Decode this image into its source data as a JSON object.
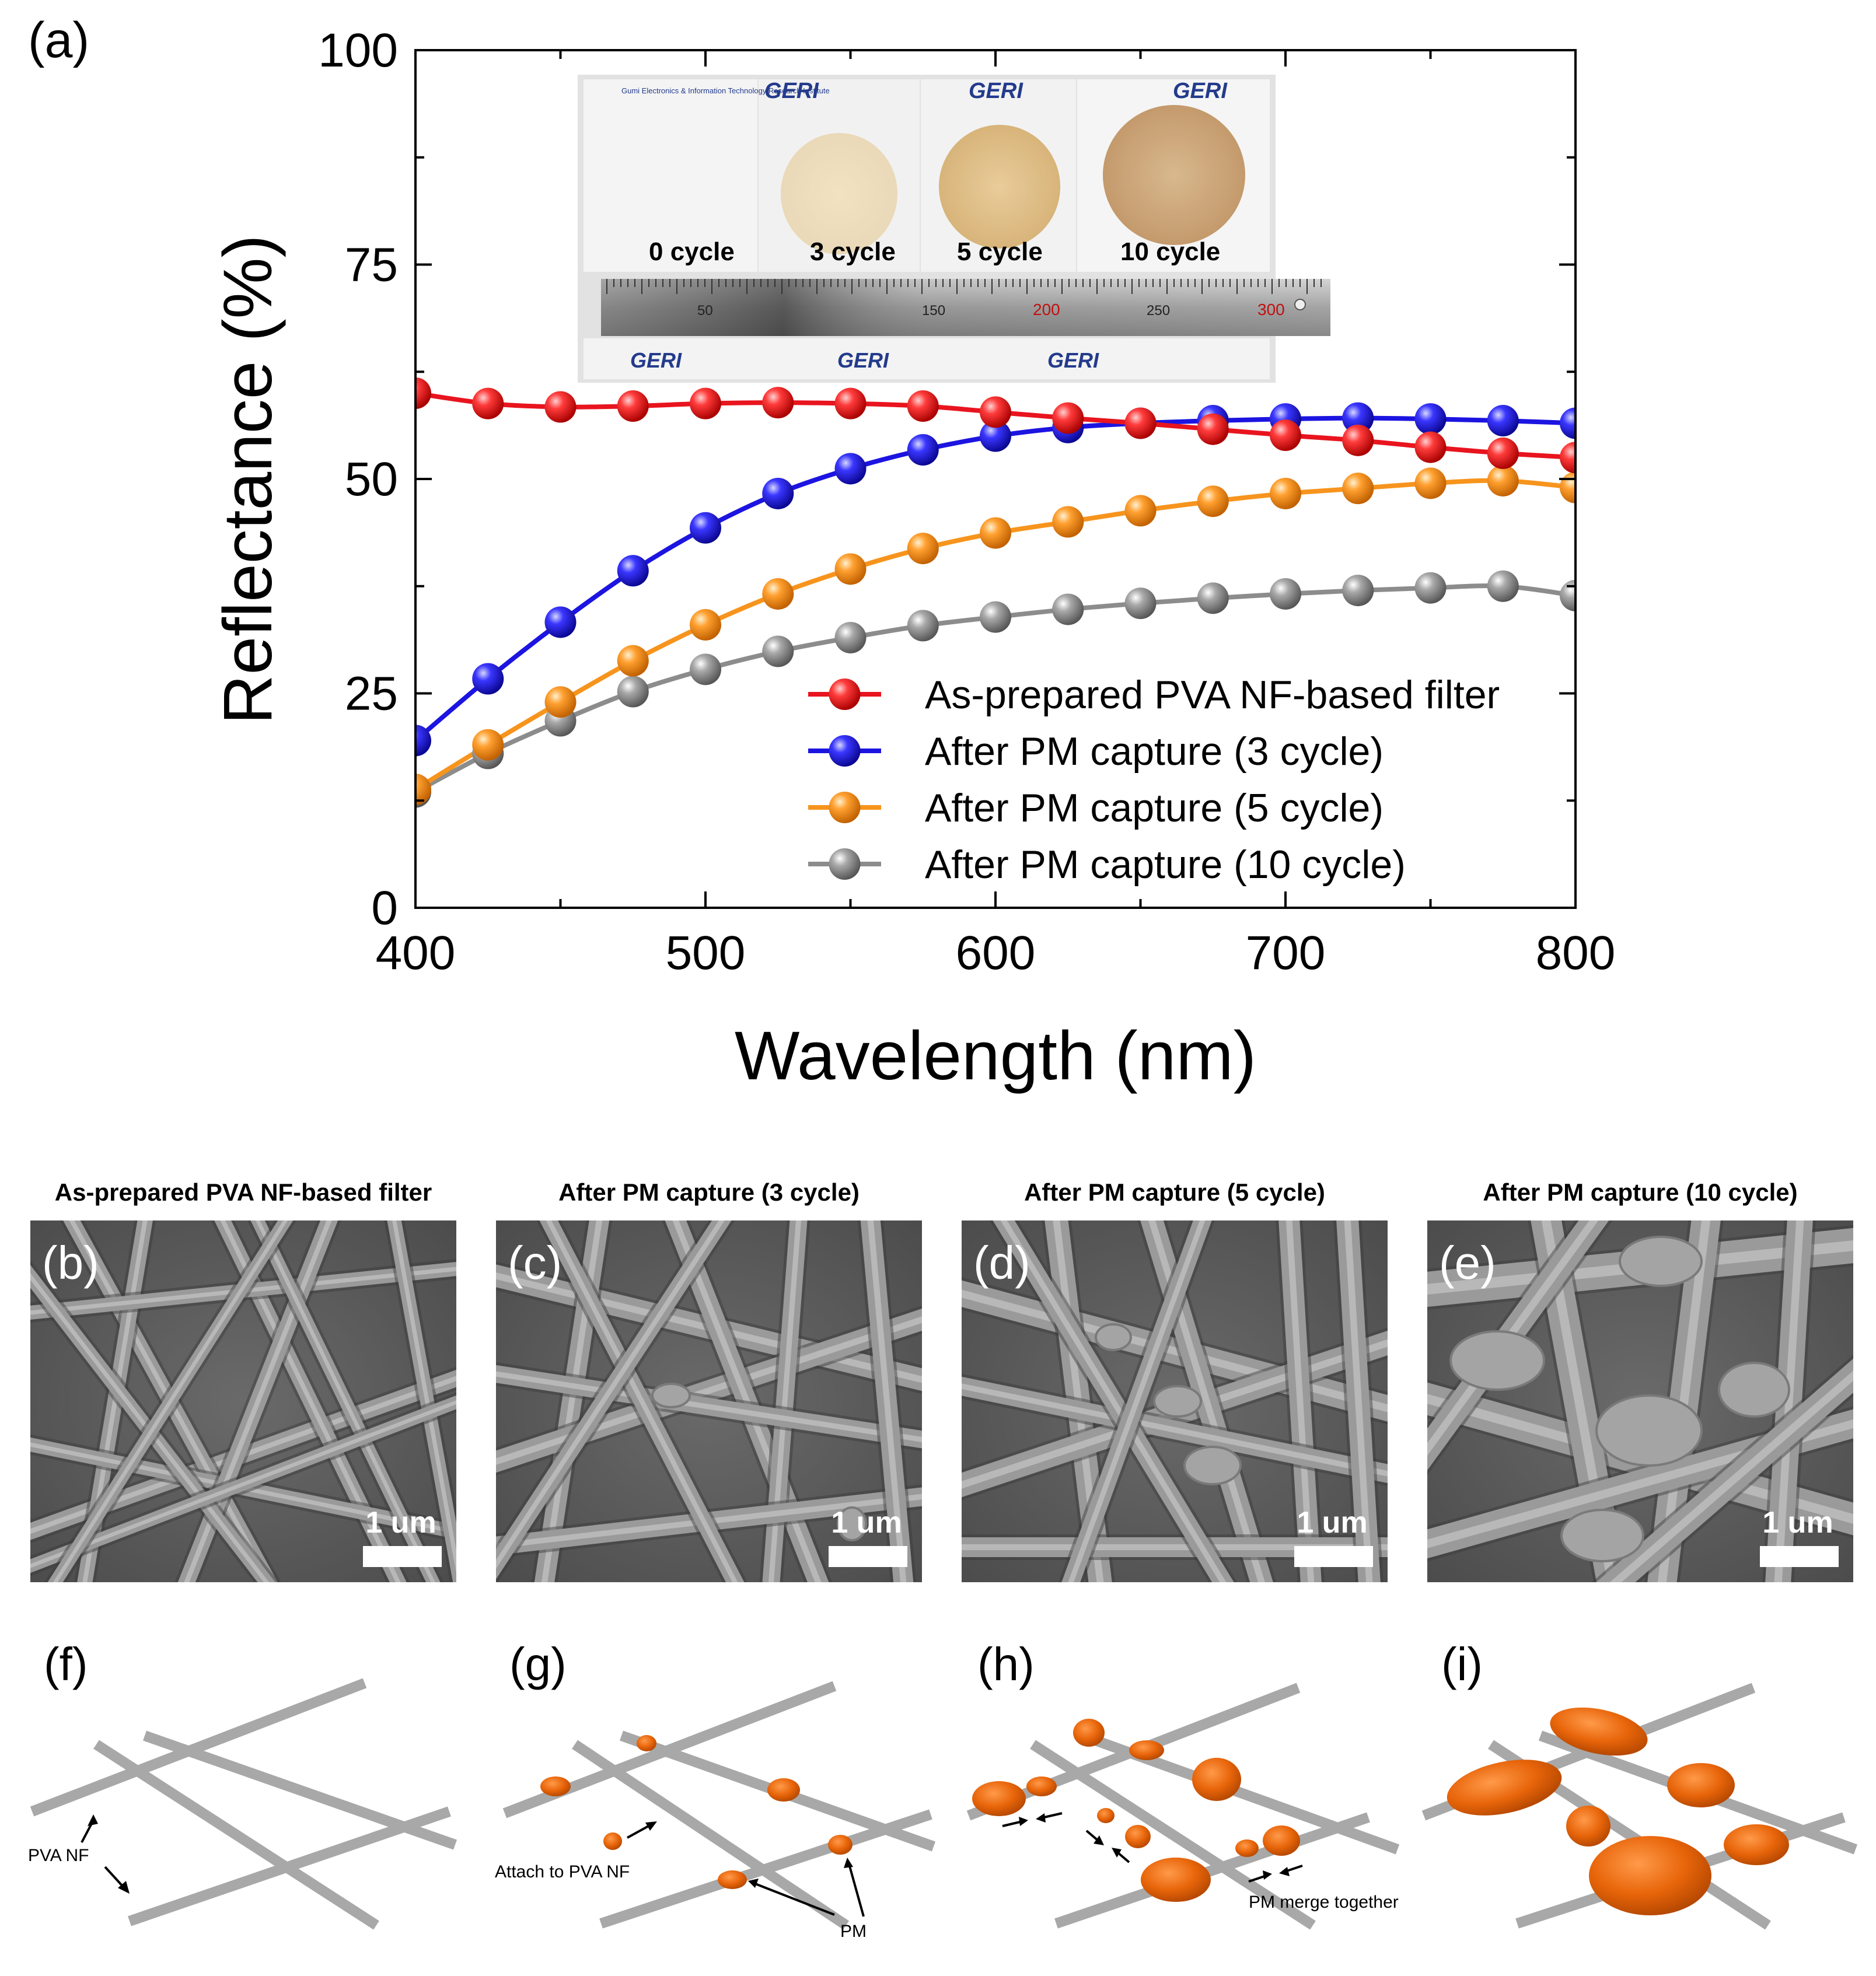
{
  "panel_a_label": "(a)",
  "chart_data": {
    "type": "line",
    "xlabel": "Wavelength (nm)",
    "ylabel": "Reflectance (%)",
    "xlim": [
      400,
      800
    ],
    "ylim": [
      0,
      100
    ],
    "xticks": [
      400,
      500,
      600,
      700,
      800
    ],
    "yticks": [
      0,
      25,
      50,
      75,
      100
    ],
    "legend_position": "bottom-right",
    "x": [
      400,
      425,
      450,
      475,
      500,
      525,
      550,
      575,
      600,
      625,
      650,
      675,
      700,
      725,
      750,
      775,
      800
    ],
    "series": [
      {
        "name": "As-prepared PVA NF-based filter",
        "color": "#e8141e",
        "values": [
          60.0,
          58.8,
          58.4,
          58.5,
          58.8,
          58.9,
          58.8,
          58.5,
          57.8,
          57.1,
          56.5,
          55.8,
          55.1,
          54.5,
          53.7,
          53.0,
          52.5
        ]
      },
      {
        "name": "After PM capture (3 cycle)",
        "color": "#1c14e0",
        "values": [
          19.5,
          26.7,
          33.3,
          39.3,
          44.3,
          48.3,
          51.2,
          53.4,
          55.0,
          56.0,
          56.5,
          56.8,
          57.0,
          57.1,
          57.0,
          56.8,
          56.5
        ]
      },
      {
        "name": "After PM capture (5 cycle)",
        "color": "#f7941d",
        "values": [
          13.8,
          19.0,
          24.0,
          28.8,
          33.0,
          36.6,
          39.5,
          41.9,
          43.7,
          45.0,
          46.3,
          47.4,
          48.3,
          48.9,
          49.5,
          49.8,
          49.0
        ]
      },
      {
        "name": "After PM capture (10 cycle)",
        "color": "#8c8c8c",
        "values": [
          13.5,
          18.0,
          21.8,
          25.2,
          27.8,
          29.9,
          31.5,
          32.9,
          33.9,
          34.8,
          35.5,
          36.1,
          36.6,
          37.0,
          37.3,
          37.5,
          36.4
        ]
      }
    ]
  },
  "inset_photo": {
    "cycle_labels": [
      "0 cycle",
      "3 cycle",
      "5 cycle",
      "10 cycle"
    ],
    "logo_text": "GERI",
    "institute_text": "Gumi Electronics & Information Technology Research Institute",
    "ruler_numbers": [
      "50",
      "150",
      "200",
      "250",
      "300"
    ]
  },
  "sem_panels": [
    {
      "title": "As-prepared PVA NF-based filter",
      "label": "(b)",
      "scale": "1 um"
    },
    {
      "title": "After PM capture (3 cycle)",
      "label": "(c)",
      "scale": "1 um"
    },
    {
      "title": "After PM capture (5 cycle)",
      "label": "(d)",
      "scale": "1 um"
    },
    {
      "title": "After PM capture (10 cycle)",
      "label": "(e)",
      "scale": "1 um"
    }
  ],
  "schematics": {
    "f": {
      "label": "(f)",
      "annotation": "PVA NF"
    },
    "g": {
      "label": "(g)",
      "annotation1": "Attach to PVA NF",
      "annotation2": "PM"
    },
    "h": {
      "label": "(h)",
      "annotation": "PM merge together"
    },
    "i": {
      "label": "(i)"
    }
  },
  "colors": {
    "pm": "#e8650a",
    "fiber": "#a8a8a8",
    "sem_bg": "#5c5c5c"
  }
}
